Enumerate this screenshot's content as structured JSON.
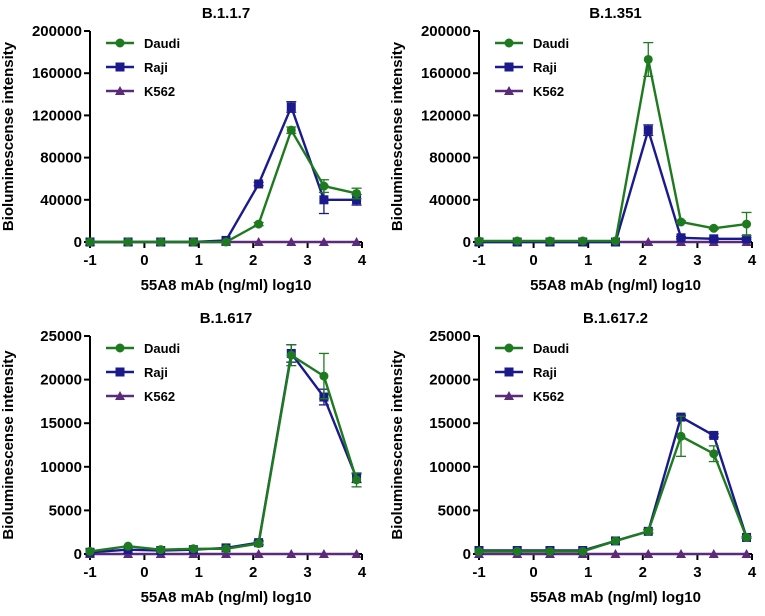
{
  "chart_data": [
    {
      "type": "line",
      "title": "B.1.1.7",
      "xlabel": "55A8 mAb (ng/ml) log10",
      "ylabel": "Bioluminescense intensity",
      "xlim": [
        -1,
        4
      ],
      "ylim": [
        0,
        200000
      ],
      "x_ticks": [
        -1,
        0,
        1,
        2,
        3,
        4
      ],
      "y_ticks": [
        0,
        40000,
        80000,
        120000,
        160000,
        200000
      ],
      "x": [
        -1,
        -0.3,
        0.3,
        0.9,
        1.5,
        2.1,
        2.7,
        3.3,
        3.9
      ],
      "series": [
        {
          "name": "Daudi",
          "color": "#1e7a1e",
          "marker": "circle",
          "values": [
            0,
            0,
            0,
            0,
            0,
            17000,
            106000,
            53000,
            46000
          ],
          "err": [
            0,
            0,
            0,
            0,
            0,
            1500,
            3000,
            6000,
            5000
          ]
        },
        {
          "name": "Raji",
          "color": "#1a1a8c",
          "marker": "square",
          "values": [
            0,
            0,
            0,
            0,
            1500,
            55000,
            128000,
            40000,
            40000
          ],
          "err": [
            0,
            0,
            0,
            0,
            0,
            1500,
            5000,
            13000,
            5000
          ]
        },
        {
          "name": "K562",
          "color": "#5b2a7a",
          "marker": "triangle",
          "values": [
            0,
            0,
            0,
            0,
            0,
            0,
            0,
            0,
            0
          ],
          "err": [
            0,
            0,
            0,
            0,
            0,
            0,
            0,
            0,
            0
          ]
        }
      ]
    },
    {
      "type": "line",
      "title": "B.1.351",
      "xlabel": "55A8 mAb (ng/ml) log10",
      "ylabel": "Bioluminescense intensity",
      "xlim": [
        -1,
        4
      ],
      "ylim": [
        0,
        200000
      ],
      "x_ticks": [
        -1,
        0,
        1,
        2,
        3,
        4
      ],
      "y_ticks": [
        0,
        40000,
        80000,
        120000,
        160000,
        200000
      ],
      "x": [
        -1,
        -0.3,
        0.3,
        0.9,
        1.5,
        2.1,
        2.7,
        3.3,
        3.9
      ],
      "series": [
        {
          "name": "Daudi",
          "color": "#1e7a1e",
          "marker": "circle",
          "values": [
            1000,
            1000,
            1000,
            1000,
            1000,
            173000,
            19000,
            13000,
            17000
          ],
          "err": [
            0,
            0,
            0,
            0,
            0,
            16000,
            1000,
            1000,
            11000
          ]
        },
        {
          "name": "Raji",
          "color": "#1a1a8c",
          "marker": "square",
          "values": [
            0,
            0,
            0,
            0,
            0,
            106000,
            4000,
            3000,
            3000
          ],
          "err": [
            0,
            0,
            0,
            0,
            0,
            5000,
            1000,
            1000,
            1000
          ]
        },
        {
          "name": "K562",
          "color": "#5b2a7a",
          "marker": "triangle",
          "values": [
            0,
            0,
            0,
            0,
            0,
            0,
            0,
            0,
            0
          ],
          "err": [
            0,
            0,
            0,
            0,
            0,
            0,
            0,
            0,
            0
          ]
        }
      ]
    },
    {
      "type": "line",
      "title": "B.1.617",
      "xlabel": "55A8 mAb (ng/ml) log10",
      "ylabel": "Bioluminescense intensity",
      "xlim": [
        -1,
        4
      ],
      "ylim": [
        0,
        25000
      ],
      "x_ticks": [
        -1,
        0,
        1,
        2,
        3,
        4
      ],
      "y_ticks": [
        0,
        5000,
        10000,
        15000,
        20000,
        25000
      ],
      "x": [
        -1,
        -0.3,
        0.3,
        0.9,
        1.5,
        2.1,
        2.7,
        3.3,
        3.9
      ],
      "series": [
        {
          "name": "Daudi",
          "color": "#1e7a1e",
          "marker": "circle",
          "values": [
            300,
            900,
            500,
            600,
            600,
            1200,
            22800,
            20400,
            8500
          ],
          "err": [
            0,
            0,
            0,
            0,
            0,
            200,
            1200,
            2600,
            800
          ]
        },
        {
          "name": "Raji",
          "color": "#1a1a8c",
          "marker": "square",
          "values": [
            200,
            500,
            400,
            500,
            700,
            1300,
            23000,
            18000,
            8700
          ],
          "err": [
            0,
            0,
            0,
            0,
            0,
            200,
            1000,
            900,
            500
          ]
        },
        {
          "name": "K562",
          "color": "#5b2a7a",
          "marker": "triangle",
          "values": [
            0,
            0,
            0,
            0,
            0,
            0,
            0,
            0,
            0
          ],
          "err": [
            0,
            0,
            0,
            0,
            0,
            0,
            0,
            0,
            0
          ]
        }
      ]
    },
    {
      "type": "line",
      "title": "B.1.617.2",
      "xlabel": "55A8 mAb (ng/ml) log10",
      "ylabel": "Bioluminescense intensity",
      "xlim": [
        -1,
        4
      ],
      "ylim": [
        0,
        25000
      ],
      "x_ticks": [
        -1,
        0,
        1,
        2,
        3,
        4
      ],
      "y_ticks": [
        0,
        5000,
        10000,
        15000,
        20000,
        25000
      ],
      "x": [
        -1,
        -0.3,
        0.3,
        0.9,
        1.5,
        2.1,
        2.7,
        3.3,
        3.9
      ],
      "series": [
        {
          "name": "Daudi",
          "color": "#1e7a1e",
          "marker": "circle",
          "values": [
            300,
            300,
            300,
            300,
            1500,
            2600,
            13500,
            11500,
            1900
          ],
          "err": [
            0,
            0,
            0,
            0,
            0,
            200,
            2300,
            900,
            100
          ]
        },
        {
          "name": "Raji",
          "color": "#1a1a8c",
          "marker": "square",
          "values": [
            400,
            400,
            400,
            400,
            1500,
            2600,
            15700,
            13600,
            1900
          ],
          "err": [
            0,
            0,
            0,
            0,
            0,
            200,
            200,
            200,
            100
          ]
        },
        {
          "name": "K562",
          "color": "#5b2a7a",
          "marker": "triangle",
          "values": [
            0,
            0,
            0,
            0,
            0,
            0,
            0,
            0,
            0
          ],
          "err": [
            0,
            0,
            0,
            0,
            0,
            0,
            0,
            0,
            0
          ]
        }
      ]
    }
  ]
}
